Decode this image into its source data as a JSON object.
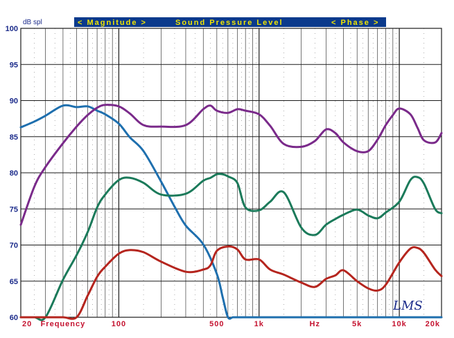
{
  "chart_data": {
    "type": "line",
    "title": "Sound Pressure Level",
    "banner": {
      "left": "< Magnitude >",
      "center": "Sound Pressure Level",
      "right": "< Phase >"
    },
    "ylabel": "dB spl",
    "xlabel": "Hz",
    "x_scale": "log",
    "xlim": [
      20,
      20000
    ],
    "ylim": [
      60,
      100
    ],
    "grid": true,
    "y_ticks": [
      60,
      65,
      70,
      75,
      80,
      85,
      90,
      95,
      100
    ],
    "y_tick_labels": [
      "60",
      "65",
      "70",
      "75",
      "80",
      "85",
      "90",
      "95",
      "100"
    ],
    "x_ticks": [
      {
        "x": 20,
        "label": "20"
      },
      {
        "x": 100,
        "label": "100"
      },
      {
        "x": 500,
        "label": "500"
      },
      {
        "x": 1000,
        "label": "1k"
      },
      {
        "x": 5000,
        "label": "5k"
      },
      {
        "x": 10000,
        "label": "10k"
      },
      {
        "x": 20000,
        "label": "20k"
      }
    ],
    "x_annotations": [
      {
        "x": 40,
        "label": "Frequency"
      },
      {
        "x": 2500,
        "label": "Hz"
      }
    ],
    "series": [
      {
        "color": "#1e6fae",
        "x": [
          20,
          25,
          30,
          40,
          50,
          60,
          70,
          80,
          100,
          120,
          150,
          200,
          250,
          300,
          400,
          500,
          550,
          600,
          650,
          700,
          1000,
          2000,
          5000,
          10000,
          20000
        ],
        "y": [
          86.3,
          87.1,
          87.9,
          89.3,
          89.1,
          89.2,
          88.6,
          88.1,
          86.8,
          84.9,
          83.0,
          78.8,
          75.3,
          72.7,
          70.1,
          66.0,
          62.8,
          60.0,
          60.0,
          60.0,
          60.0,
          60.0,
          60.0,
          60.0,
          60.0
        ]
      },
      {
        "color": "#7a2a8a",
        "x": [
          20,
          25,
          30,
          40,
          50,
          60,
          70,
          80,
          100,
          120,
          150,
          200,
          300,
          400,
          450,
          500,
          600,
          700,
          800,
          1000,
          1200,
          1500,
          2000,
          2500,
          3000,
          3500,
          4000,
          5000,
          6000,
          7000,
          8000,
          9000,
          10000,
          12000,
          13500,
          15000,
          18000,
          20000
        ],
        "y": [
          72.8,
          78.1,
          80.8,
          84.1,
          86.4,
          88.0,
          89.0,
          89.4,
          89.2,
          88.2,
          86.6,
          86.4,
          86.6,
          88.8,
          89.3,
          88.6,
          88.3,
          88.8,
          88.6,
          88.1,
          86.5,
          84.0,
          83.6,
          84.4,
          86.0,
          85.5,
          84.2,
          83.0,
          83.0,
          84.6,
          86.6,
          88.0,
          88.9,
          88.1,
          86.2,
          84.5,
          84.2,
          85.5
        ]
      },
      {
        "color": "#1b7a5a",
        "x": [
          20,
          25,
          30,
          40,
          50,
          60,
          70,
          80,
          100,
          120,
          150,
          200,
          300,
          400,
          450,
          500,
          550,
          600,
          700,
          800,
          1000,
          1200,
          1500,
          2000,
          2500,
          3000,
          3500,
          4000,
          5000,
          6000,
          7000,
          8000,
          10000,
          12000,
          13500,
          15000,
          18000,
          20000
        ],
        "y": [
          60.0,
          60.0,
          60.0,
          65.2,
          68.6,
          71.8,
          75.2,
          77.0,
          79.0,
          79.3,
          78.6,
          77.0,
          77.1,
          78.9,
          79.3,
          79.8,
          79.8,
          79.5,
          78.6,
          75.2,
          74.8,
          76.0,
          77.3,
          72.4,
          71.4,
          72.8,
          73.6,
          74.2,
          74.9,
          74.1,
          73.7,
          74.5,
          76.0,
          79.0,
          79.4,
          78.5,
          75.0,
          74.4
        ]
      },
      {
        "color": "#b5251e",
        "x": [
          20,
          25,
          30,
          40,
          50,
          60,
          70,
          80,
          100,
          120,
          150,
          200,
          300,
          400,
          450,
          500,
          600,
          700,
          800,
          1000,
          1200,
          1500,
          2000,
          2500,
          3000,
          3500,
          4000,
          5000,
          6000,
          7000,
          8000,
          10000,
          12000,
          13500,
          15000,
          18000,
          20000
        ],
        "y": [
          60.0,
          60.0,
          60.0,
          60.0,
          60.0,
          63.0,
          65.6,
          67.0,
          68.8,
          69.3,
          69.0,
          67.7,
          66.3,
          66.6,
          67.2,
          69.2,
          69.8,
          69.4,
          68.0,
          68.0,
          66.6,
          65.9,
          64.8,
          64.2,
          65.3,
          65.8,
          66.5,
          65.0,
          64.0,
          63.7,
          64.5,
          67.6,
          69.5,
          69.6,
          68.9,
          66.6,
          65.7
        ]
      }
    ],
    "logo": "LMS",
    "colors": {
      "background": "#ffffff",
      "banner": "#0b3a8c",
      "banner_text": "#f2e600",
      "grid": "#1a1a1a",
      "x_tick_text": "#c4122f",
      "y_tick_text": "#1a2a8a"
    }
  }
}
